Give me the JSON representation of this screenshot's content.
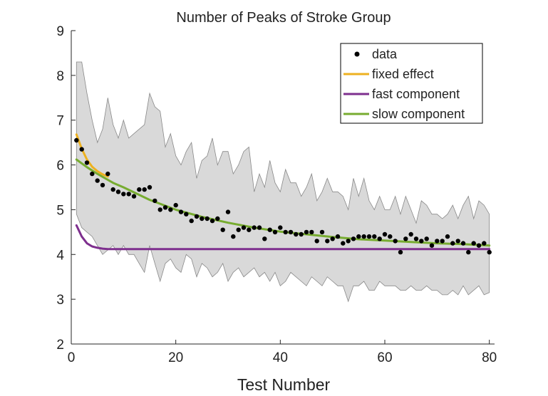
{
  "chart_data": {
    "type": "scatter",
    "title": "Number of Peaks of Stroke Group",
    "xlabel": "Test Number",
    "ylabel": "",
    "xlim": [
      0,
      81
    ],
    "ylim": [
      2,
      9
    ],
    "xticks": [
      0,
      20,
      40,
      60,
      80
    ],
    "yticks": [
      2,
      3,
      4,
      5,
      6,
      7,
      8,
      9
    ],
    "grid": false,
    "legend_position": "top-right",
    "legend": [
      {
        "label": "data",
        "kind": "marker",
        "color": "#000000"
      },
      {
        "label": "fixed effect",
        "kind": "line",
        "color": "#EDB120"
      },
      {
        "label": "fast component",
        "kind": "line",
        "color": "#7E2F8E"
      },
      {
        "label": "slow component",
        "kind": "line",
        "color": "#77AC30"
      }
    ],
    "band_color": "#d9d9d9",
    "band_edge_color": "#888888",
    "band": {
      "x": [
        1,
        2,
        3,
        4,
        5,
        6,
        7,
        8,
        9,
        10,
        11,
        12,
        13,
        14,
        15,
        16,
        17,
        18,
        19,
        20,
        21,
        22,
        23,
        24,
        25,
        26,
        27,
        28,
        29,
        30,
        31,
        32,
        33,
        34,
        35,
        36,
        37,
        38,
        39,
        40,
        41,
        42,
        43,
        44,
        45,
        46,
        47,
        48,
        49,
        50,
        51,
        52,
        53,
        54,
        55,
        56,
        57,
        58,
        59,
        60,
        61,
        62,
        63,
        64,
        65,
        66,
        67,
        68,
        69,
        70,
        71,
        72,
        73,
        74,
        75,
        76,
        77,
        78,
        79,
        80
      ],
      "upper": [
        8.3,
        8.3,
        7.6,
        7.0,
        6.5,
        6.8,
        7.5,
        6.9,
        6.6,
        7.0,
        6.6,
        6.7,
        6.8,
        6.9,
        7.6,
        7.3,
        7.2,
        6.4,
        6.7,
        6.2,
        6.0,
        6.3,
        6.5,
        5.7,
        6.1,
        6.2,
        6.6,
        6.0,
        6.3,
        6.3,
        5.8,
        6.0,
        6.3,
        6.4,
        5.4,
        5.8,
        5.5,
        6.1,
        5.6,
        5.4,
        5.9,
        5.6,
        5.6,
        5.3,
        5.5,
        5.8,
        5.2,
        5.4,
        5.7,
        5.4,
        5.4,
        5.3,
        5.0,
        5.7,
        5.3,
        5.7,
        5.2,
        5.0,
        5.3,
        5.0,
        5.0,
        5.3,
        4.9,
        5.3,
        5.0,
        4.7,
        5.2,
        5.1,
        4.9,
        4.9,
        4.8,
        4.9,
        5.1,
        4.8,
        5.1,
        5.3,
        4.8,
        5.2,
        5.1,
        4.9
      ],
      "lower": [
        4.9,
        4.6,
        4.5,
        4.4,
        4.2,
        4.0,
        4.1,
        4.2,
        4.0,
        4.2,
        4.0,
        4.0,
        3.8,
        3.6,
        4.2,
        3.8,
        3.4,
        3.8,
        3.9,
        3.7,
        3.6,
        4.0,
        3.9,
        3.5,
        3.8,
        3.7,
        3.5,
        3.6,
        3.8,
        3.4,
        3.6,
        3.7,
        3.5,
        3.6,
        3.7,
        3.5,
        3.6,
        3.4,
        3.6,
        3.3,
        3.4,
        3.6,
        3.5,
        3.4,
        3.3,
        3.5,
        3.4,
        3.3,
        3.5,
        3.4,
        3.3,
        3.3,
        2.95,
        3.3,
        3.3,
        3.4,
        3.2,
        3.2,
        3.4,
        3.3,
        3.3,
        3.3,
        3.2,
        3.2,
        3.3,
        3.2,
        3.2,
        3.3,
        3.2,
        3.2,
        3.1,
        3.1,
        3.2,
        3.1,
        3.3,
        3.1,
        3.2,
        3.3,
        3.1,
        3.15
      ]
    },
    "series": [
      {
        "name": "data",
        "kind": "scatter",
        "x": [
          1,
          2,
          3,
          4,
          5,
          6,
          7,
          8,
          9,
          10,
          11,
          12,
          13,
          14,
          15,
          16,
          17,
          18,
          19,
          20,
          21,
          22,
          23,
          24,
          25,
          26,
          27,
          28,
          29,
          30,
          31,
          32,
          33,
          34,
          35,
          36,
          37,
          38,
          39,
          40,
          41,
          42,
          43,
          44,
          45,
          46,
          47,
          48,
          49,
          50,
          51,
          52,
          53,
          54,
          55,
          56,
          57,
          58,
          59,
          60,
          61,
          62,
          63,
          64,
          65,
          66,
          67,
          68,
          69,
          70,
          71,
          72,
          73,
          74,
          75,
          76,
          77,
          78,
          79,
          80
        ],
        "y": [
          6.55,
          6.35,
          6.05,
          5.8,
          5.65,
          5.55,
          5.8,
          5.45,
          5.4,
          5.35,
          5.35,
          5.3,
          5.45,
          5.45,
          5.5,
          5.2,
          5.0,
          5.05,
          5.0,
          5.1,
          4.95,
          4.9,
          4.75,
          4.85,
          4.8,
          4.8,
          4.75,
          4.8,
          4.55,
          4.95,
          4.4,
          4.55,
          4.6,
          4.55,
          4.6,
          4.6,
          4.35,
          4.55,
          4.5,
          4.6,
          4.5,
          4.5,
          4.45,
          4.45,
          4.5,
          4.5,
          4.3,
          4.5,
          4.3,
          4.35,
          4.4,
          4.25,
          4.3,
          4.35,
          4.4,
          4.4,
          4.4,
          4.4,
          4.35,
          4.45,
          4.4,
          4.3,
          4.05,
          4.35,
          4.45,
          4.35,
          4.3,
          4.35,
          4.2,
          4.3,
          4.3,
          4.4,
          4.25,
          4.3,
          4.25,
          4.05,
          4.25,
          4.2,
          4.25,
          4.05
        ]
      },
      {
        "name": "fixed effect",
        "kind": "line",
        "x": [
          1,
          2,
          3,
          4,
          5,
          6,
          7
        ],
        "y": [
          6.68,
          6.36,
          6.12,
          5.96,
          5.86,
          5.79,
          5.74
        ]
      },
      {
        "name": "fast component",
        "kind": "line",
        "x": [
          1,
          2,
          3,
          4,
          5,
          6,
          7,
          8,
          10,
          15,
          20,
          30,
          40,
          50,
          60,
          70,
          80
        ],
        "y": [
          4.65,
          4.4,
          4.25,
          4.18,
          4.15,
          4.13,
          4.12,
          4.12,
          4.12,
          4.12,
          4.12,
          4.12,
          4.12,
          4.12,
          4.12,
          4.12,
          4.12
        ]
      },
      {
        "name": "slow component",
        "kind": "line",
        "x": [
          1,
          3,
          5,
          8,
          10,
          15,
          20,
          25,
          30,
          35,
          40,
          45,
          50,
          55,
          60,
          65,
          70,
          75,
          80
        ],
        "y": [
          6.12,
          5.95,
          5.8,
          5.6,
          5.5,
          5.22,
          5.0,
          4.84,
          4.71,
          4.6,
          4.51,
          4.45,
          4.39,
          4.34,
          4.31,
          4.28,
          4.25,
          4.23,
          4.2
        ]
      }
    ]
  }
}
